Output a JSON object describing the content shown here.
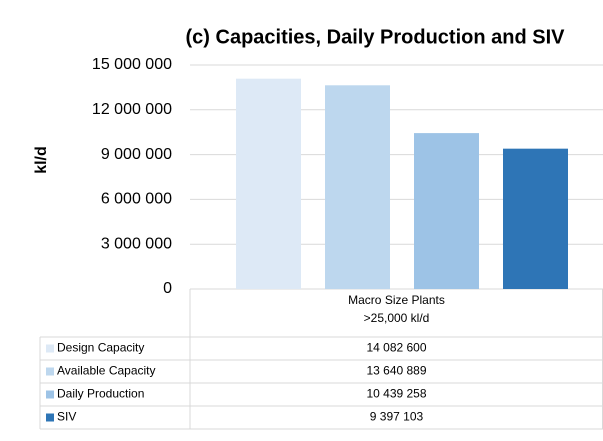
{
  "chart_data": {
    "type": "bar",
    "title": "(c) Capacities, Daily Production and SIV",
    "ylabel": "kl/d",
    "categories": [
      "Macro Size Plants\n>25,000 kl/d"
    ],
    "series": [
      {
        "name": "Design Capacity",
        "color": "#dde9f6",
        "values": [
          14082600
        ],
        "value_labels": [
          "14 082 600"
        ]
      },
      {
        "name": "Available Capacity",
        "color": "#bdd7ee",
        "values": [
          13640889
        ],
        "value_labels": [
          "13 640 889"
        ]
      },
      {
        "name": "Daily Production",
        "color": "#9dc3e6",
        "values": [
          10439258
        ],
        "value_labels": [
          "10 439 258"
        ]
      },
      {
        "name": "SIV",
        "color": "#2e75b6",
        "values": [
          9397103
        ],
        "value_labels": [
          "9 397 103"
        ]
      }
    ],
    "ylim": [
      0,
      15000000
    ],
    "yticks": [
      0,
      {
        "value": 3000000,
        "label": "3 000 000"
      },
      {
        "value": 6000000,
        "label": "6 000 000"
      },
      {
        "value": 9000000,
        "label": "9 000 000"
      },
      {
        "value": 12000000,
        "label": "12 000 000"
      },
      {
        "value": 15000000,
        "label": "15 000 000"
      }
    ],
    "grid": true
  }
}
